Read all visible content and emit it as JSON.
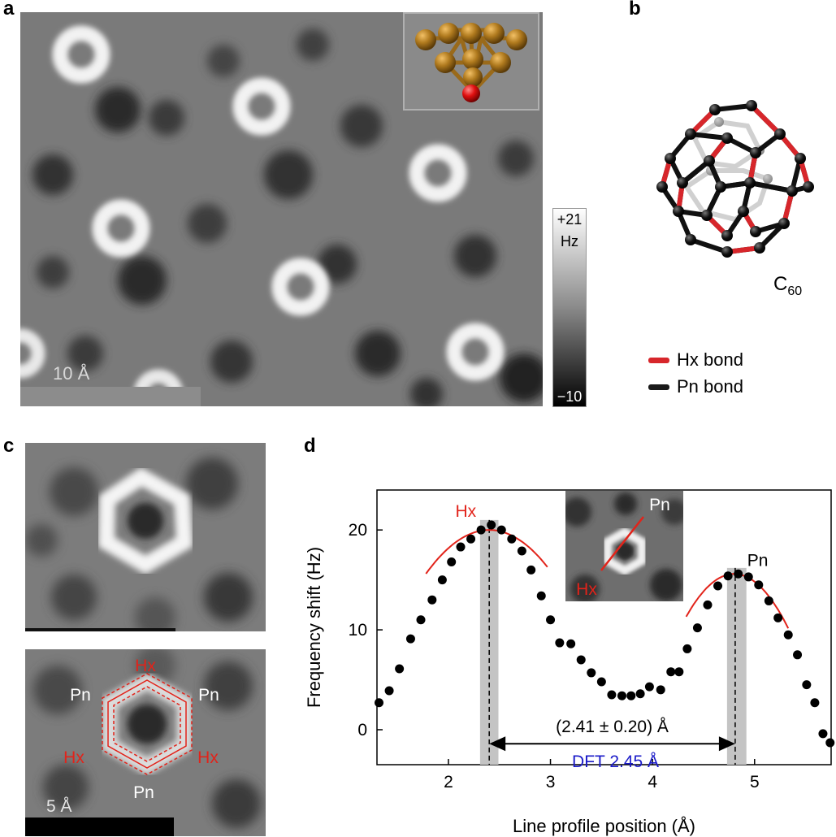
{
  "panel_labels": {
    "a": "a",
    "b": "b",
    "c": "c",
    "d": "d"
  },
  "panel_a": {
    "scale_label": "10 Å",
    "colorbar": {
      "top": "+21",
      "unit": "Hz",
      "bottom": "−10"
    }
  },
  "panel_b": {
    "molecule": "C",
    "molecule_sub": "60",
    "legend": [
      {
        "label": "Hx bond",
        "color": "#d7262b"
      },
      {
        "label": "Pn bond",
        "color": "#1a1a1a"
      }
    ]
  },
  "panel_c": {
    "scale_label": "5 Å",
    "bond_labels": {
      "hx_top": "Hx",
      "hx_left": "Hx",
      "hx_right": "Hx",
      "pn_left": "Pn",
      "pn_right": "Pn",
      "pn_bottom": "Pn"
    },
    "colors": {
      "hx": "#e2231a",
      "pn": "#ffffff"
    }
  },
  "chart_data": {
    "type": "scatter",
    "xlabel": "Line profile position (Å)",
    "ylabel": "Frequency shift (Hz)",
    "xlim": [
      1.3,
      5.75
    ],
    "ylim": [
      -3.5,
      24
    ],
    "xticks": [
      2,
      3,
      4,
      5
    ],
    "yticks": [
      0,
      10,
      20
    ],
    "points": [
      [
        1.32,
        2.7
      ],
      [
        1.42,
        3.9
      ],
      [
        1.52,
        6.1
      ],
      [
        1.63,
        9.1
      ],
      [
        1.73,
        11.0
      ],
      [
        1.84,
        13.0
      ],
      [
        1.94,
        15.0
      ],
      [
        2.03,
        16.8
      ],
      [
        2.12,
        18.3
      ],
      [
        2.22,
        19.1
      ],
      [
        2.32,
        20.0
      ],
      [
        2.42,
        20.5
      ],
      [
        2.52,
        20.0
      ],
      [
        2.62,
        19.1
      ],
      [
        2.72,
        17.9
      ],
      [
        2.81,
        16.0
      ],
      [
        2.91,
        13.4
      ],
      [
        3.0,
        11.0
      ],
      [
        3.09,
        8.7
      ],
      [
        3.2,
        8.6
      ],
      [
        3.3,
        7.0
      ],
      [
        3.4,
        5.7
      ],
      [
        3.5,
        4.8
      ],
      [
        3.6,
        3.5
      ],
      [
        3.7,
        3.4
      ],
      [
        3.79,
        3.4
      ],
      [
        3.88,
        3.6
      ],
      [
        3.97,
        4.3
      ],
      [
        4.08,
        4.0
      ],
      [
        4.18,
        5.8
      ],
      [
        4.26,
        5.8
      ],
      [
        4.34,
        8.1
      ],
      [
        4.44,
        10.2
      ],
      [
        4.54,
        12.5
      ],
      [
        4.64,
        14.4
      ],
      [
        4.74,
        15.4
      ],
      [
        4.84,
        15.6
      ],
      [
        4.94,
        15.3
      ],
      [
        5.04,
        14.5
      ],
      [
        5.14,
        12.9
      ],
      [
        5.23,
        11.2
      ],
      [
        5.33,
        9.5
      ],
      [
        5.42,
        7.5
      ],
      [
        5.51,
        4.5
      ],
      [
        5.59,
        2.7
      ],
      [
        5.67,
        -0.4
      ],
      [
        5.74,
        -1.3
      ]
    ],
    "fits": [
      {
        "peak_x": 2.4,
        "peak_y": 20.0,
        "curvature": 11.4,
        "x_range": [
          1.78,
          2.97
        ],
        "color": "#e2231a"
      },
      {
        "peak_x": 4.8,
        "peak_y": 15.6,
        "curvature": 19.4,
        "x_range": [
          4.33,
          5.33
        ],
        "color": "#e2231a"
      }
    ],
    "peak_bands": [
      {
        "x_range": [
          2.31,
          2.49
        ],
        "center": 2.4,
        "top": 21.0
      },
      {
        "x_range": [
          4.73,
          4.92
        ],
        "center": 4.81,
        "top": 16.2
      }
    ],
    "peak_labels": [
      {
        "text": "Hx",
        "x": 2.17,
        "y": 21.3,
        "color": "#e2231a"
      },
      {
        "text": "Pn",
        "x": 5.03,
        "y": 16.4,
        "color": "#000000"
      }
    ],
    "distance": {
      "label": "(2.41 ± 0.20) Å",
      "dft_label": "DFT  2.45 Å",
      "dft_color": "#1a1ac8",
      "x_from": 2.4,
      "x_to": 4.81,
      "y": -1.4
    },
    "inset_labels": {
      "pn": "Pn",
      "hx": "Hx"
    }
  }
}
